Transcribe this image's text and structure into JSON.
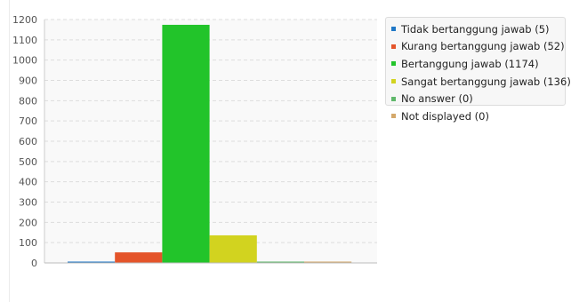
{
  "chart_data": {
    "type": "bar",
    "categories": [
      "Tidak bertanggung jawab (5)",
      "Kurang bertanggung jawab (52)",
      "Bertanggung jawab (1174)",
      "Sangat bertanggung jawab (136)",
      "No answer (0)",
      "Not displayed (0)"
    ],
    "values": [
      5,
      52,
      1174,
      136,
      0,
      0
    ],
    "colors": [
      "#1f77c6",
      "#e4542a",
      "#22c42a",
      "#d2d31f",
      "#5fb86a",
      "#d4a86a"
    ],
    "yticks": [
      0,
      100,
      200,
      300,
      400,
      500,
      600,
      700,
      800,
      900,
      1000,
      1100,
      1200
    ],
    "ylim": [
      0,
      1200
    ],
    "grid": true,
    "legend_position": "right"
  }
}
